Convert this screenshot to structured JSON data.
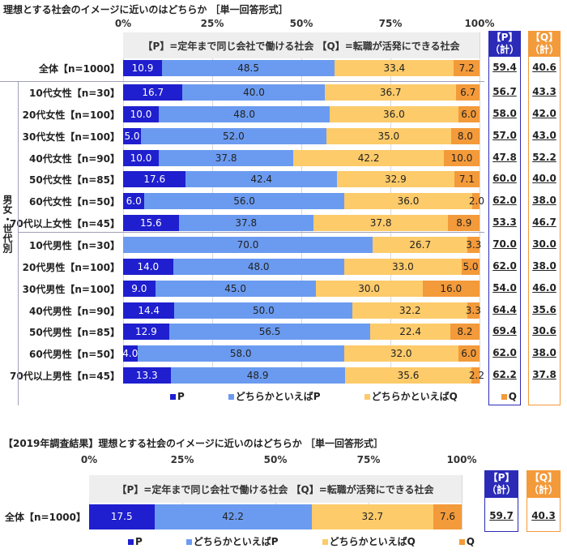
{
  "colors": {
    "p": "#1f1fcf",
    "lean_p": "#6b9bf0",
    "lean_q": "#fdcb6a",
    "q": "#f39a3a",
    "p_total": "#2b2bb8",
    "q_total": "#f39a3a"
  },
  "chart_data": [
    {
      "type": "bar",
      "stacked": true,
      "orientation": "horizontal",
      "title": "理想とする社会のイメージに近いのはどちらか ［単一回答形式］",
      "subtitle": "【P】=定年まで同じ会社で働ける社会 【Q】=転職が活発にできる社会",
      "xlim": [
        0,
        100
      ],
      "ticks": [
        "0%",
        "25%",
        "50%",
        "75%",
        "100%"
      ],
      "group_label": "男女・世代別",
      "legend": [
        "P",
        "どちらかといえばP",
        "どちらかといえばQ",
        "Q"
      ],
      "totals_headers": [
        [
          "【P】",
          "（計）"
        ],
        [
          "【Q】",
          "（計）"
        ]
      ],
      "categories": [
        "全体【n=1000】",
        "10代女性【n=30】",
        "20代女性【n=100】",
        "30代女性【n=100】",
        "40代女性【n=90】",
        "50代女性【n=85】",
        "60代女性【n=50】",
        "70代以上女性【n=45】",
        "10代男性【n=30】",
        "20代男性【n=100】",
        "30代男性【n=100】",
        "40代男性【n=90】",
        "50代男性【n=85】",
        "60代男性【n=50】",
        "70代以上男性【n=45】"
      ],
      "series": [
        {
          "name": "P",
          "values": [
            10.9,
            16.7,
            10.0,
            5.0,
            10.0,
            17.6,
            6.0,
            15.6,
            0,
            14.0,
            9.0,
            14.4,
            12.9,
            4.0,
            13.3
          ]
        },
        {
          "name": "どちらかといえばP",
          "values": [
            48.5,
            40.0,
            48.0,
            52.0,
            37.8,
            42.4,
            56.0,
            37.8,
            70.0,
            48.0,
            45.0,
            50.0,
            56.5,
            58.0,
            48.9
          ]
        },
        {
          "name": "どちらかといえばQ",
          "values": [
            33.4,
            36.7,
            36.0,
            35.0,
            42.2,
            32.9,
            36.0,
            37.8,
            26.7,
            33.0,
            30.0,
            32.2,
            22.4,
            32.0,
            35.6
          ]
        },
        {
          "name": "Q",
          "values": [
            7.2,
            6.7,
            6.0,
            8.0,
            10.0,
            7.1,
            2.0,
            8.9,
            3.3,
            5.0,
            16.0,
            3.3,
            8.2,
            6.0,
            2.2
          ]
        }
      ],
      "p_total": [
        "59.4",
        "56.7",
        "58.0",
        "57.0",
        "47.8",
        "60.0",
        "62.0",
        "53.3",
        "70.0",
        "62.0",
        "54.0",
        "64.4",
        "69.4",
        "62.0",
        "62.2"
      ],
      "q_total": [
        "40.6",
        "43.3",
        "42.0",
        "43.0",
        "52.2",
        "40.0",
        "38.0",
        "46.7",
        "30.0",
        "38.0",
        "46.0",
        "35.6",
        "30.6",
        "38.0",
        "37.8"
      ]
    },
    {
      "type": "bar",
      "stacked": true,
      "orientation": "horizontal",
      "title": "【2019年調査結果】理想とする社会のイメージに近いのはどちらか ［単一回答形式］",
      "subtitle": "【P】=定年まで同じ会社で働ける社会 【Q】=転職が活発にできる社会",
      "xlim": [
        0,
        100
      ],
      "ticks": [
        "0%",
        "25%",
        "50%",
        "75%",
        "100%"
      ],
      "legend": [
        "P",
        "どちらかといえばP",
        "どちらかといえばQ",
        "Q"
      ],
      "totals_headers": [
        [
          "【P】",
          "（計）"
        ],
        [
          "【Q】",
          "（計）"
        ]
      ],
      "categories": [
        "全体【n=1000】"
      ],
      "series": [
        {
          "name": "P",
          "values": [
            17.5
          ]
        },
        {
          "name": "どちらかといえばP",
          "values": [
            42.2
          ]
        },
        {
          "name": "どちらかといえばQ",
          "values": [
            32.7
          ]
        },
        {
          "name": "Q",
          "values": [
            7.6
          ]
        }
      ],
      "p_total": [
        "59.7"
      ],
      "q_total": [
        "40.3"
      ]
    }
  ]
}
